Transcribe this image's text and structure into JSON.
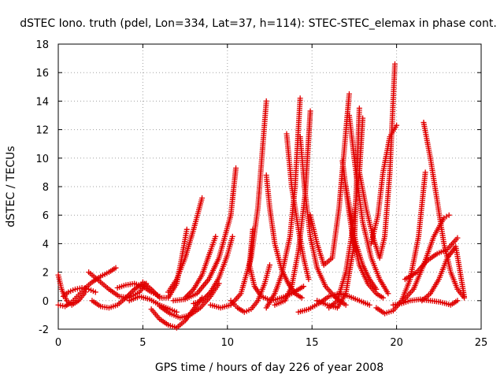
{
  "chart_data": {
    "type": "scatter",
    "title": "dSTEC Iono. truth (pdel, Lon=334, Lat=37, h=114): STEC-STEC_elemax in phase cont.",
    "xlabel": "GPS time / hours of day 226 of year 2008",
    "ylabel": "dSTEC  / TECUs",
    "xlim": [
      0,
      25
    ],
    "ylim": [
      -2,
      18
    ],
    "xticks": [
      0,
      5,
      10,
      15,
      20,
      25
    ],
    "yticks": [
      -2,
      0,
      2,
      4,
      6,
      8,
      10,
      12,
      14,
      16,
      18
    ],
    "grid": true,
    "marker": "plus",
    "marker_color": "#e00000",
    "series": [
      {
        "x": [
          0.0,
          0.2,
          0.5,
          0.8,
          1.2,
          1.6
        ],
        "y": [
          1.8,
          0.8,
          0.0,
          -0.3,
          0.0,
          0.6
        ]
      },
      {
        "x": [
          0.0,
          0.4,
          0.8,
          1.2,
          1.6,
          2.0,
          2.5,
          3.0,
          3.4
        ],
        "y": [
          -0.3,
          -0.4,
          -0.1,
          0.4,
          0.9,
          1.3,
          1.7,
          2.0,
          2.3
        ]
      },
      {
        "x": [
          0.3,
          0.6,
          1.0,
          1.4,
          1.8,
          2.2
        ],
        "y": [
          0.3,
          0.6,
          0.8,
          0.9,
          0.8,
          0.6
        ]
      },
      {
        "x": [
          1.8,
          2.4,
          3.0,
          3.6,
          4.2,
          4.8,
          5.2
        ],
        "y": [
          2.0,
          1.4,
          0.8,
          0.3,
          0.2,
          0.6,
          1.2
        ]
      },
      {
        "x": [
          2.0,
          2.5,
          3.0,
          3.5,
          4.0,
          4.5,
          5.0
        ],
        "y": [
          0.0,
          -0.4,
          -0.5,
          -0.3,
          0.2,
          0.8,
          1.2
        ]
      },
      {
        "x": [
          3.5,
          4.0,
          4.5,
          5.0,
          5.5,
          6.0
        ],
        "y": [
          0.9,
          1.1,
          1.2,
          1.0,
          0.6,
          0.3
        ]
      },
      {
        "x": [
          4.2,
          4.8,
          5.4,
          6.0,
          6.6,
          7.0
        ],
        "y": [
          0.0,
          0.3,
          0.1,
          -0.3,
          -0.6,
          -0.8
        ]
      },
      {
        "x": [
          5.0,
          5.5,
          6.0,
          6.5,
          7.0,
          7.3,
          7.6
        ],
        "y": [
          1.3,
          0.8,
          0.2,
          0.2,
          1.2,
          3.0,
          5.0
        ]
      },
      {
        "x": [
          5.5,
          6.0,
          6.5,
          7.0,
          7.5,
          8.0,
          8.5
        ],
        "y": [
          -0.6,
          -1.3,
          -1.7,
          -1.9,
          -1.4,
          -0.6,
          0.2
        ]
      },
      {
        "x": [
          6.0,
          6.6,
          7.2,
          7.8,
          8.4,
          9.0,
          9.5
        ],
        "y": [
          -0.4,
          -0.9,
          -1.2,
          -1.0,
          -0.5,
          0.3,
          1.2
        ]
      },
      {
        "x": [
          6.5,
          7.0,
          7.5,
          8.0,
          8.5
        ],
        "y": [
          0.6,
          1.5,
          3.0,
          5.0,
          7.2
        ]
      },
      {
        "x": [
          6.8,
          7.5,
          8.2,
          8.9,
          9.5,
          10.2,
          10.5
        ],
        "y": [
          0.0,
          0.1,
          0.5,
          1.5,
          3.0,
          6.0,
          9.3
        ]
      },
      {
        "x": [
          7.5,
          8.0,
          8.5,
          9.0,
          9.3
        ],
        "y": [
          0.2,
          0.8,
          1.8,
          3.5,
          4.5
        ]
      },
      {
        "x": [
          8.0,
          8.5,
          9.0,
          9.5,
          10.0,
          10.3
        ],
        "y": [
          -0.2,
          0.0,
          0.6,
          1.6,
          3.2,
          4.5
        ]
      },
      {
        "x": [
          9.0,
          9.6,
          10.2,
          10.8,
          11.4,
          11.8,
          12.1,
          12.3
        ],
        "y": [
          -0.3,
          -0.5,
          -0.3,
          0.5,
          3.0,
          6.5,
          11.0,
          14.0
        ]
      },
      {
        "x": [
          10.2,
          10.6,
          11.0,
          11.4,
          11.8,
          12.2,
          12.5
        ],
        "y": [
          0.0,
          -0.5,
          -0.8,
          -0.6,
          0.0,
          1.2,
          2.5
        ]
      },
      {
        "x": [
          11.5,
          11.3,
          11.6,
          12.0,
          12.6,
          13.2,
          13.8,
          14.5
        ],
        "y": [
          5.0,
          2.5,
          1.0,
          0.3,
          0.0,
          0.2,
          0.5,
          1.0
        ]
      },
      {
        "x": [
          12.3,
          12.5,
          12.8,
          13.2,
          13.6,
          14.0,
          14.4
        ],
        "y": [
          8.8,
          6.5,
          4.0,
          2.2,
          1.2,
          0.5,
          0.2
        ]
      },
      {
        "x": [
          12.3,
          12.8,
          13.2,
          13.7,
          14.0,
          14.3
        ],
        "y": [
          -0.5,
          0.5,
          1.8,
          4.5,
          8.0,
          14.2
        ]
      },
      {
        "x": [
          14.3,
          14.6,
          14.9,
          15.3,
          15.8,
          16.4,
          17.0
        ],
        "y": [
          11.5,
          7.5,
          4.5,
          2.3,
          1.0,
          0.2,
          -0.3
        ]
      },
      {
        "x": [
          12.8,
          13.4,
          13.8,
          14.2,
          14.6,
          14.9
        ],
        "y": [
          -0.3,
          0.0,
          1.0,
          3.5,
          7.5,
          13.3
        ]
      },
      {
        "x": [
          13.5,
          13.8,
          14.2,
          14.5,
          14.8
        ],
        "y": [
          11.7,
          8.0,
          5.0,
          3.0,
          1.5
        ]
      },
      {
        "x": [
          14.2,
          14.8,
          15.4,
          16.0,
          16.6,
          17.2,
          17.8,
          18.4
        ],
        "y": [
          -0.8,
          -0.6,
          -0.2,
          0.3,
          0.5,
          0.3,
          0.0,
          -0.3
        ]
      },
      {
        "x": [
          14.9,
          15.3,
          15.7,
          16.2,
          16.6,
          16.9,
          17.2
        ],
        "y": [
          6.0,
          4.0,
          2.5,
          3.0,
          6.5,
          10.5,
          14.5
        ]
      },
      {
        "x": [
          17.2,
          17.6,
          18.0,
          18.5,
          19.0,
          19.5
        ],
        "y": [
          13.0,
          9.0,
          5.5,
          3.0,
          1.5,
          0.5
        ]
      },
      {
        "x": [
          15.3,
          15.9,
          16.5,
          17.0,
          17.5,
          17.8
        ],
        "y": [
          0.0,
          -0.3,
          -0.5,
          0.5,
          4.0,
          13.5
        ]
      },
      {
        "x": [
          16.0,
          16.5,
          17.0,
          17.4,
          17.8,
          18.0
        ],
        "y": [
          -0.5,
          0.0,
          2.0,
          5.0,
          9.0,
          12.8
        ]
      },
      {
        "x": [
          16.8,
          17.1,
          17.4,
          17.8,
          18.3,
          18.8,
          19.2
        ],
        "y": [
          9.8,
          7.0,
          4.5,
          2.5,
          1.2,
          0.5,
          0.2
        ]
      },
      {
        "x": [
          17.0,
          17.3,
          17.6,
          18.0,
          18.4,
          18.8
        ],
        "y": [
          8.0,
          6.0,
          4.0,
          2.5,
          1.5,
          0.8
        ]
      },
      {
        "x": [
          17.8,
          18.2,
          18.6,
          19.0,
          19.3,
          19.6,
          19.9
        ],
        "y": [
          9.0,
          6.5,
          4.5,
          3.0,
          4.5,
          9.0,
          16.6
        ]
      },
      {
        "x": [
          18.5,
          18.9,
          19.2,
          19.6,
          20.0
        ],
        "y": [
          4.0,
          6.0,
          9.0,
          11.5,
          12.3
        ]
      },
      {
        "x": [
          18.8,
          19.3,
          19.8,
          20.3,
          20.8,
          21.3,
          21.7
        ],
        "y": [
          -0.5,
          -0.9,
          -0.7,
          0.0,
          1.5,
          4.5,
          9.0
        ]
      },
      {
        "x": [
          19.8,
          20.3,
          20.8,
          21.4,
          22.0,
          22.6,
          23.2,
          23.6
        ],
        "y": [
          -0.3,
          -0.2,
          0.0,
          0.1,
          0.0,
          -0.1,
          -0.3,
          0.0
        ]
      },
      {
        "x": [
          21.6,
          22.0,
          22.4,
          22.8,
          23.2,
          23.6,
          24.0
        ],
        "y": [
          12.5,
          10.0,
          7.0,
          4.0,
          2.0,
          0.8,
          0.2
        ]
      },
      {
        "x": [
          20.4,
          21.0,
          21.6,
          22.2,
          22.8,
          23.1
        ],
        "y": [
          0.0,
          0.8,
          2.5,
          4.5,
          5.8,
          6.0
        ]
      },
      {
        "x": [
          21.5,
          22.0,
          22.5,
          23.0,
          23.5,
          24.0
        ],
        "y": [
          0.0,
          0.5,
          1.5,
          3.0,
          3.8,
          0.3
        ]
      },
      {
        "x": [
          20.5,
          21.2,
          21.8,
          22.4,
          23.0,
          23.6
        ],
        "y": [
          1.5,
          2.0,
          2.8,
          3.3,
          3.6,
          4.4
        ]
      }
    ]
  }
}
